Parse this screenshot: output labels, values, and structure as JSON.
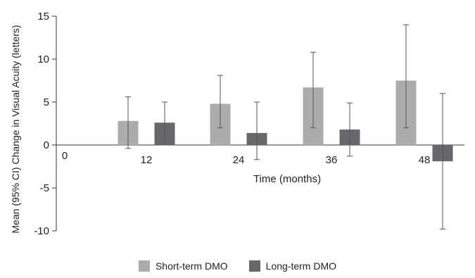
{
  "chart_data": {
    "type": "bar",
    "ylabel": "Mean (95% CI) Change in Visual Acuity (letters)",
    "xlabel": "Time (months)",
    "ylim": [
      -10,
      15
    ],
    "yticks": [
      -10,
      -5,
      0,
      5,
      10,
      15
    ],
    "x_origin_label": "0",
    "categories": [
      "12",
      "24",
      "36",
      "48"
    ],
    "series": [
      {
        "name": "Short-term DMO",
        "color": "#acacac",
        "values": [
          2.8,
          4.8,
          6.7,
          7.5
        ],
        "ci_low": [
          -0.4,
          2.0,
          2.0,
          2.0
        ],
        "ci_high": [
          5.6,
          8.1,
          10.8,
          14.0
        ]
      },
      {
        "name": "Long-term DMO",
        "color": "#68686c",
        "values": [
          2.6,
          1.4,
          1.8,
          -1.9
        ],
        "ci_low": [
          0.0,
          -1.7,
          -1.3,
          -9.8
        ],
        "ci_high": [
          5.0,
          5.0,
          4.9,
          6.0
        ]
      }
    ],
    "grid": false,
    "legend_position": "bottom"
  }
}
